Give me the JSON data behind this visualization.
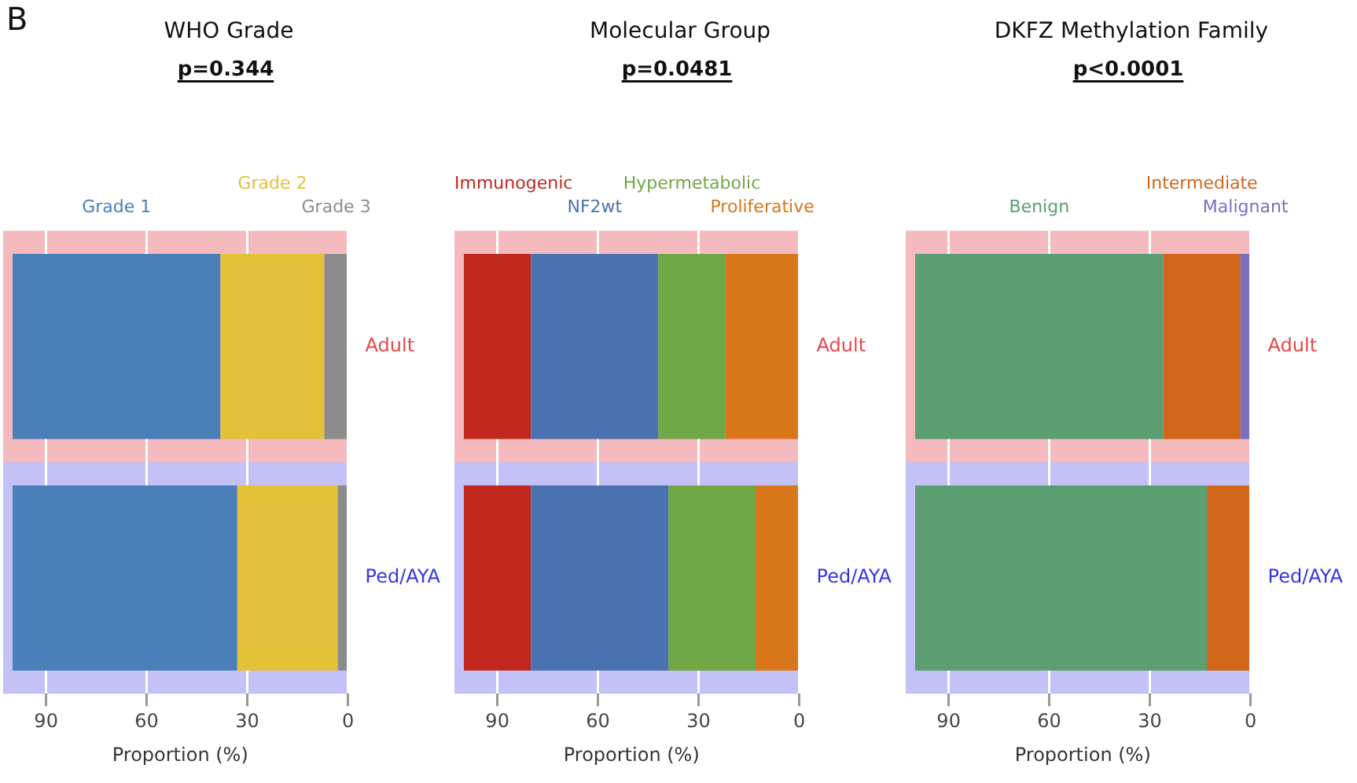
{
  "chart_data": [
    {
      "type": "bar",
      "orientation": "horizontal",
      "title": "WHO Grade",
      "annotations": [
        "B",
        "p=0.344"
      ],
      "categories": [
        "Adult",
        "Ped/AYA"
      ],
      "stacked": true,
      "xlabel": "Proportion (%)",
      "xlim": [
        100,
        0
      ],
      "xticks": [
        90,
        60,
        30,
        0
      ],
      "grid": "x",
      "legend": "top",
      "bands": [
        {
          "axis": "y",
          "from": "Adult",
          "to": "Adult",
          "color": "#f4babd"
        },
        {
          "axis": "y",
          "from": "Ped/AYA",
          "to": "Ped/AYA",
          "color": "#c3c1f5"
        }
      ],
      "series": [
        {
          "name": "Grade 3",
          "color": "#8c8c8c",
          "values": [
            7,
            3
          ]
        },
        {
          "name": "Grade 2",
          "color": "#e3c23a",
          "values": [
            31,
            30
          ]
        },
        {
          "name": "Grade 1",
          "color": "#4a7fba",
          "values": [
            62,
            67
          ]
        }
      ]
    },
    {
      "type": "bar",
      "orientation": "horizontal",
      "title": "Molecular Group",
      "annotations": [
        "p=0.0481"
      ],
      "categories": [
        "Adult",
        "Ped/AYA"
      ],
      "stacked": true,
      "xlabel": "Proportion (%)",
      "xlim": [
        100,
        0
      ],
      "xticks": [
        90,
        60,
        30,
        0
      ],
      "grid": "x",
      "legend": "top",
      "bands": [
        {
          "axis": "y",
          "from": "Adult",
          "to": "Adult",
          "color": "#f4babd"
        },
        {
          "axis": "y",
          "from": "Ped/AYA",
          "to": "Ped/AYA",
          "color": "#c3c1f5"
        }
      ],
      "series": [
        {
          "name": "Proliferative",
          "color": "#d9761a",
          "values": [
            22,
            13
          ]
        },
        {
          "name": "Hypermetabolic",
          "color": "#6fa844",
          "values": [
            20,
            26
          ]
        },
        {
          "name": "NF2wt",
          "color": "#4a72b0",
          "values": [
            38,
            41
          ]
        },
        {
          "name": "Immunogenic",
          "color": "#c0281e",
          "values": [
            20,
            20
          ]
        }
      ]
    },
    {
      "type": "bar",
      "orientation": "horizontal",
      "title": "DKFZ Methylation Family",
      "annotations": [
        "p<0.0001"
      ],
      "categories": [
        "Adult",
        "Ped/AYA"
      ],
      "stacked": true,
      "xlabel": "Proportion (%)",
      "xlim": [
        100,
        0
      ],
      "xticks": [
        90,
        60,
        30,
        0
      ],
      "grid": "x",
      "legend": "top",
      "bands": [
        {
          "axis": "y",
          "from": "Adult",
          "to": "Adult",
          "color": "#f4babd"
        },
        {
          "axis": "y",
          "from": "Ped/AYA",
          "to": "Ped/AYA",
          "color": "#c3c1f5"
        }
      ],
      "series": [
        {
          "name": "Malignant",
          "color": "#7a6ec0",
          "values": [
            3,
            0
          ]
        },
        {
          "name": "Intermediate",
          "color": "#d2661a",
          "values": [
            23,
            13
          ]
        },
        {
          "name": "Benign",
          "color": "#5a9e72",
          "values": [
            74,
            87
          ]
        }
      ]
    }
  ]
}
